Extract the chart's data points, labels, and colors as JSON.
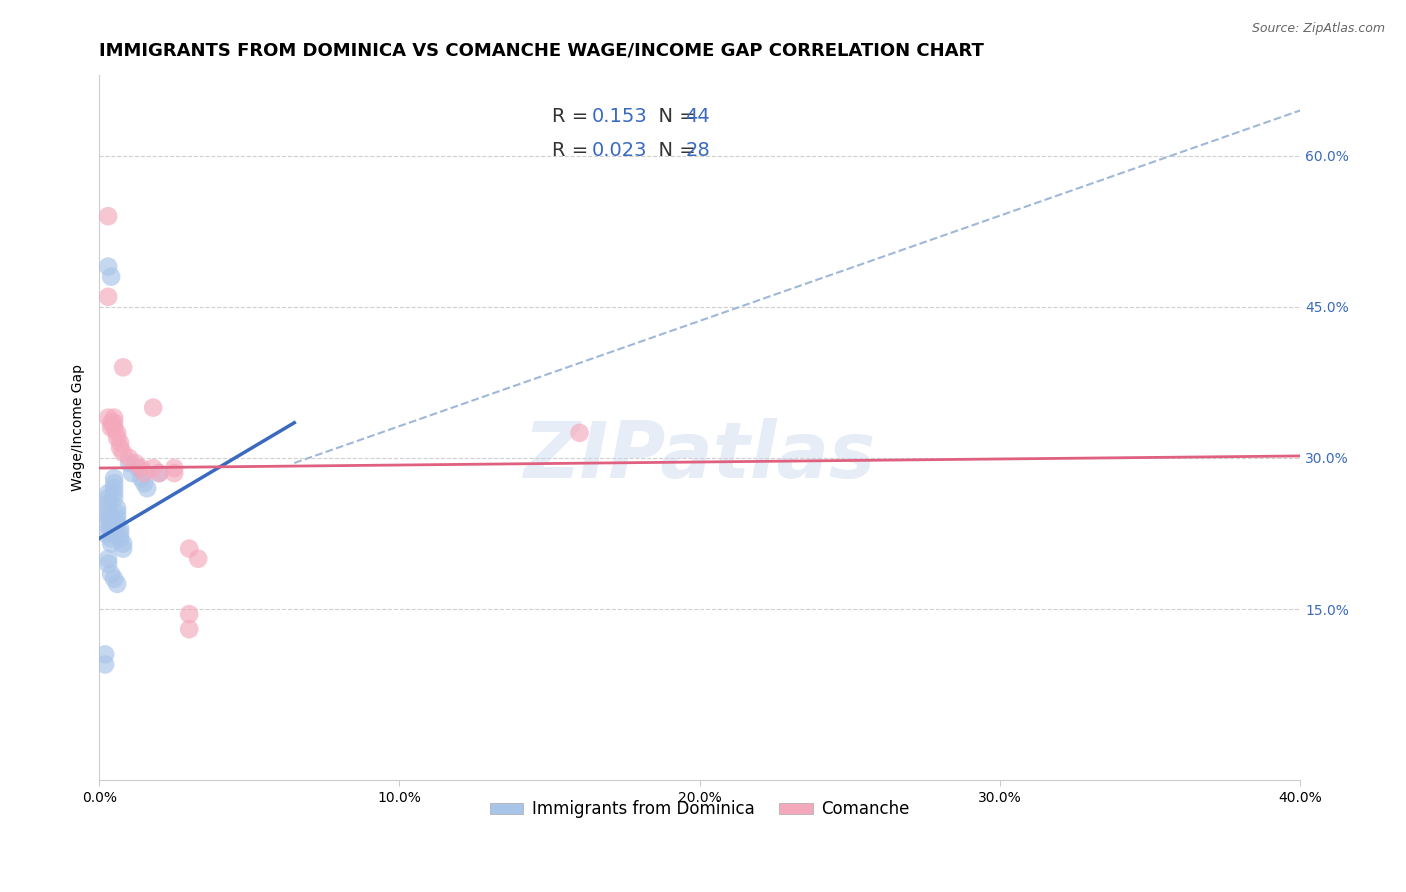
{
  "title": "IMMIGRANTS FROM DOMINICA VS COMANCHE WAGE/INCOME GAP CORRELATION CHART",
  "source": "Source: ZipAtlas.com",
  "ylabel_label": "Wage/Income Gap",
  "xlim": [
    0.0,
    0.4
  ],
  "ylim": [
    -0.02,
    0.68
  ],
  "xticks": [
    0.0,
    0.1,
    0.2,
    0.3,
    0.4
  ],
  "yticks_right": [
    0.15,
    0.3,
    0.45,
    0.6
  ],
  "ytick_right_labels": [
    "15.0%",
    "30.0%",
    "45.0%",
    "60.0%"
  ],
  "blue_R": 0.153,
  "blue_N": 44,
  "pink_R": 0.023,
  "pink_N": 28,
  "blue_color": "#a8c4e8",
  "pink_color": "#f4a8bc",
  "blue_line_color": "#3a6abf",
  "pink_line_color": "#e06080",
  "dashed_line_color": "#a0b8d8",
  "watermark": "ZIPatlas",
  "legend_label_blue": "Immigrants from Dominica",
  "legend_label_pink": "Comanche",
  "blue_scatter_x": [
    0.002,
    0.002,
    0.003,
    0.003,
    0.003,
    0.003,
    0.003,
    0.003,
    0.004,
    0.004,
    0.004,
    0.004,
    0.004,
    0.004,
    0.005,
    0.005,
    0.005,
    0.005,
    0.005,
    0.006,
    0.006,
    0.006,
    0.006,
    0.007,
    0.007,
    0.007,
    0.008,
    0.008,
    0.01,
    0.011,
    0.014,
    0.015,
    0.016,
    0.02,
    0.002,
    0.002,
    0.003,
    0.003,
    0.004,
    0.005,
    0.013,
    0.006,
    0.003,
    0.004
  ],
  "blue_scatter_y": [
    0.235,
    0.225,
    0.265,
    0.26,
    0.255,
    0.25,
    0.245,
    0.24,
    0.24,
    0.235,
    0.23,
    0.225,
    0.22,
    0.215,
    0.28,
    0.275,
    0.27,
    0.265,
    0.26,
    0.25,
    0.245,
    0.24,
    0.235,
    0.23,
    0.225,
    0.22,
    0.215,
    0.21,
    0.295,
    0.285,
    0.28,
    0.275,
    0.27,
    0.285,
    0.105,
    0.095,
    0.2,
    0.195,
    0.185,
    0.18,
    0.29,
    0.175,
    0.49,
    0.48
  ],
  "pink_scatter_x": [
    0.003,
    0.004,
    0.004,
    0.005,
    0.005,
    0.005,
    0.006,
    0.006,
    0.007,
    0.007,
    0.008,
    0.01,
    0.012,
    0.014,
    0.015,
    0.018,
    0.02,
    0.025,
    0.025,
    0.03,
    0.033,
    0.16,
    0.003,
    0.003,
    0.008,
    0.018,
    0.03,
    0.03
  ],
  "pink_scatter_y": [
    0.34,
    0.335,
    0.33,
    0.34,
    0.335,
    0.33,
    0.325,
    0.32,
    0.315,
    0.31,
    0.305,
    0.3,
    0.295,
    0.29,
    0.285,
    0.29,
    0.285,
    0.29,
    0.285,
    0.21,
    0.2,
    0.325,
    0.54,
    0.46,
    0.39,
    0.35,
    0.145,
    0.13
  ],
  "blue_trendline_x": [
    0.0,
    0.065
  ],
  "blue_trendline_y": [
    0.22,
    0.335
  ],
  "pink_trendline_x": [
    0.0,
    0.4
  ],
  "pink_trendline_y": [
    0.29,
    0.302
  ],
  "dashed_trendline_x": [
    0.065,
    0.4
  ],
  "dashed_trendline_y": [
    0.295,
    0.645
  ],
  "bg_color": "#ffffff",
  "grid_color": "#d0d0d0",
  "title_fontsize": 13,
  "axis_fontsize": 10
}
